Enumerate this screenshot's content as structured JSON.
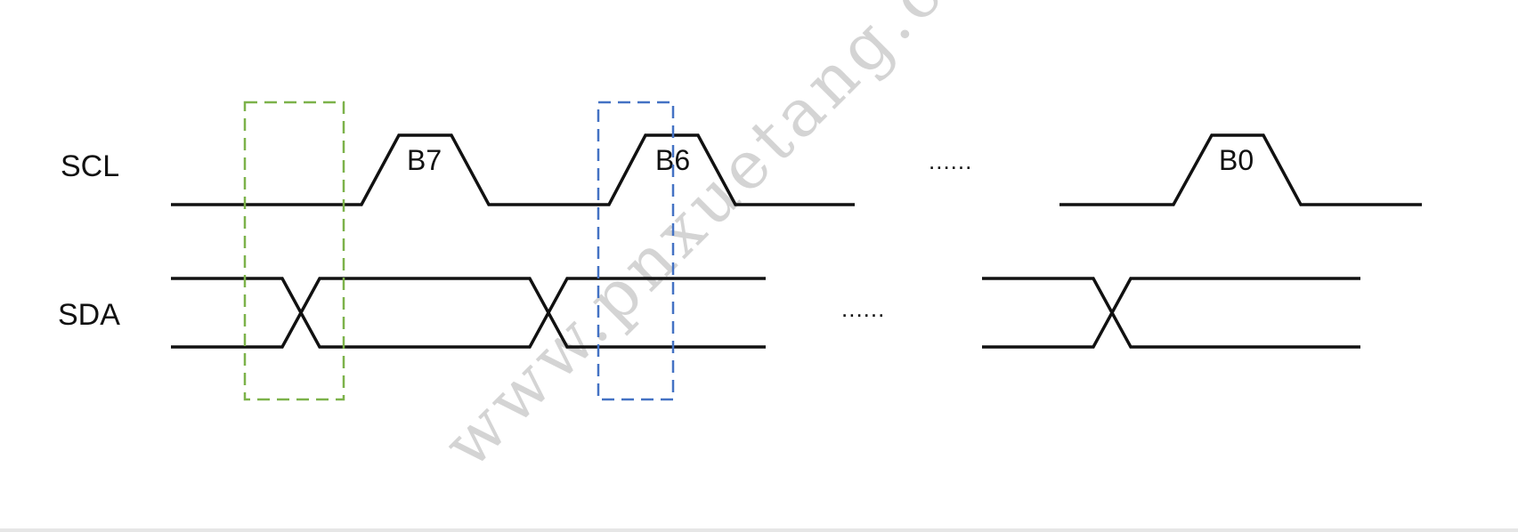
{
  "signals": {
    "scl": "SCL",
    "sda": "SDA"
  },
  "bits": {
    "b7": "B7",
    "b6": "B6",
    "b0": "B0"
  },
  "ellipsis": {
    "scl": "......",
    "sda": "......"
  },
  "watermark": "www.pnxuetang.c",
  "colors": {
    "line": "#111111",
    "highlight_setup": "#7cb24a",
    "highlight_sample": "#4472c4",
    "watermark": "#d4d4d4"
  }
}
